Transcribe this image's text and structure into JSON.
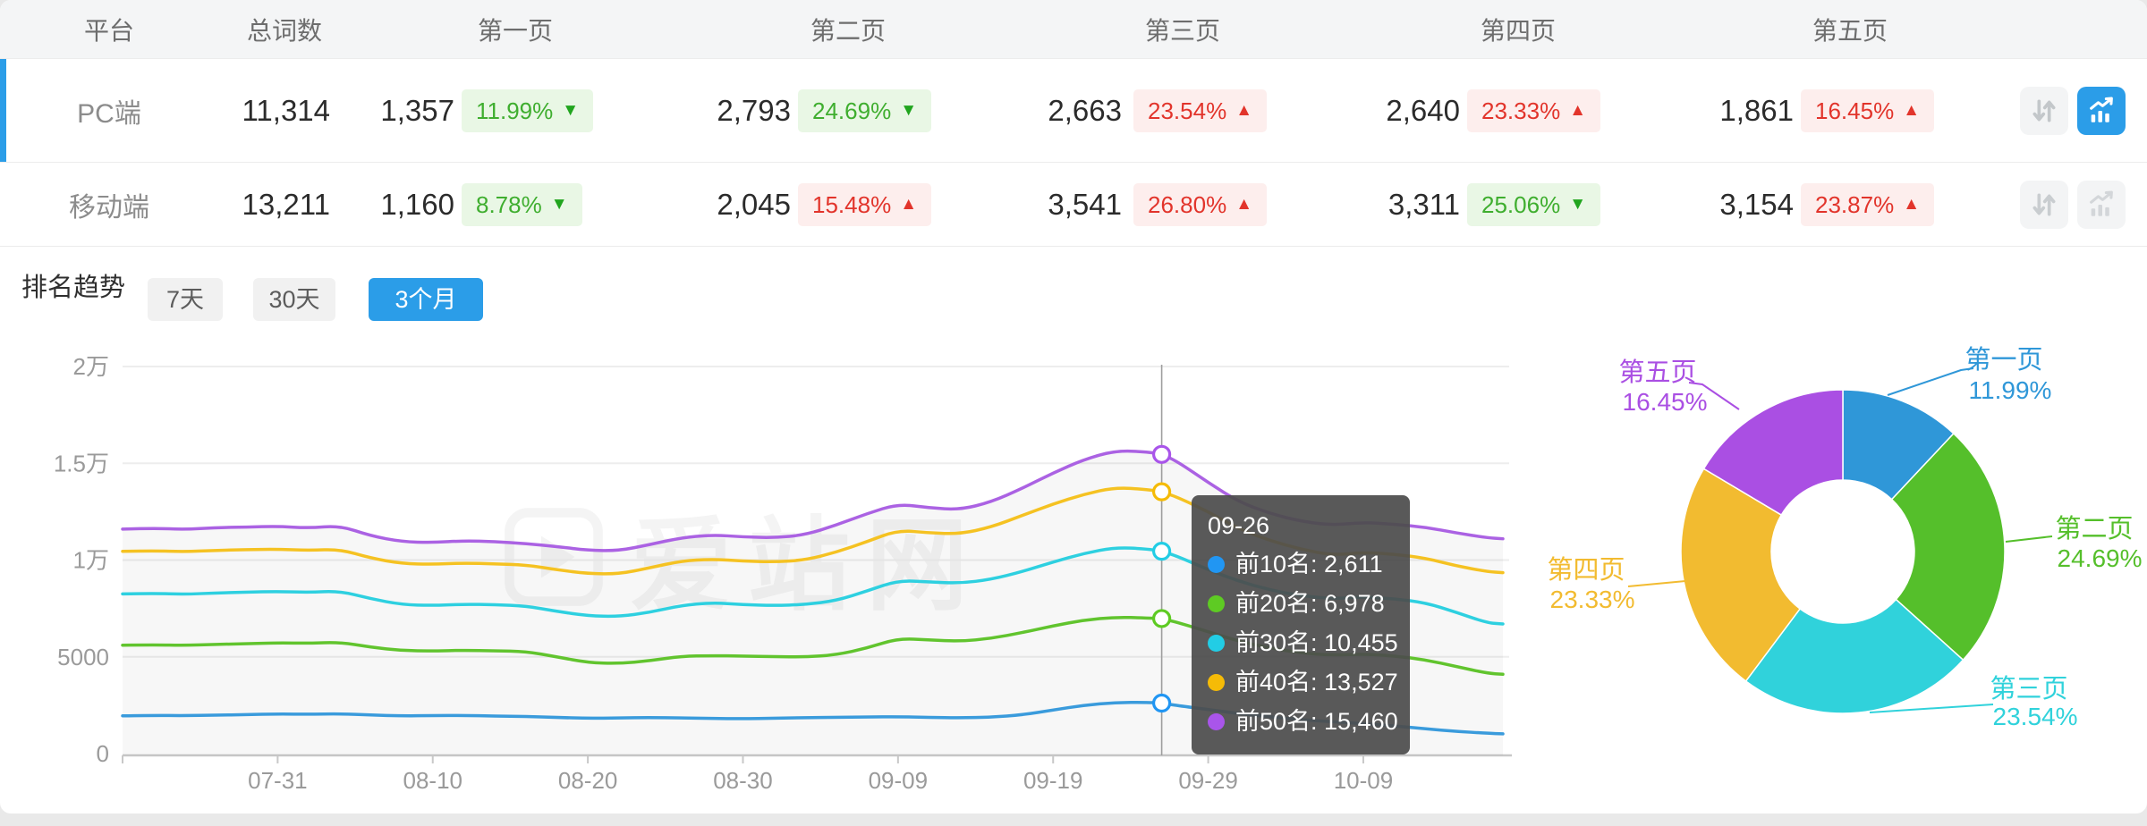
{
  "table": {
    "columns": [
      "平台",
      "总词数",
      "第一页",
      "第二页",
      "第三页",
      "第四页",
      "第五页"
    ],
    "rows": [
      {
        "platform": "PC端",
        "total": "11,314",
        "selected": true,
        "chart_button_active": true,
        "pages": [
          {
            "count": "1,357",
            "pct": "11.99%",
            "dir": "down",
            "tone": "good"
          },
          {
            "count": "2,793",
            "pct": "24.69%",
            "dir": "down",
            "tone": "good"
          },
          {
            "count": "2,663",
            "pct": "23.54%",
            "dir": "up",
            "tone": "bad"
          },
          {
            "count": "2,640",
            "pct": "23.33%",
            "dir": "up",
            "tone": "bad"
          },
          {
            "count": "1,861",
            "pct": "16.45%",
            "dir": "up",
            "tone": "bad"
          }
        ]
      },
      {
        "platform": "移动端",
        "total": "13,211",
        "selected": false,
        "chart_button_active": false,
        "pages": [
          {
            "count": "1,160",
            "pct": "8.78%",
            "dir": "down",
            "tone": "good"
          },
          {
            "count": "2,045",
            "pct": "15.48%",
            "dir": "up",
            "tone": "bad"
          },
          {
            "count": "3,541",
            "pct": "26.80%",
            "dir": "up",
            "tone": "bad"
          },
          {
            "count": "3,311",
            "pct": "25.06%",
            "dir": "down",
            "tone": "good"
          },
          {
            "count": "3,154",
            "pct": "23.87%",
            "dir": "up",
            "tone": "bad"
          }
        ]
      }
    ]
  },
  "trend": {
    "title": "排名趋势",
    "ranges": [
      "7天",
      "30天",
      "3个月"
    ],
    "active_range": "3个月"
  },
  "watermark": "爱站网",
  "tooltip": {
    "date": "09-26",
    "day": 67,
    "items": [
      {
        "label": "前10名",
        "value": 2611,
        "text": "前10名: 2,611",
        "color": "#2196f3"
      },
      {
        "label": "前20名",
        "value": 6978,
        "text": "前20名: 6,978",
        "color": "#5ecb23"
      },
      {
        "label": "前30名",
        "value": 10455,
        "text": "前30名: 10,455",
        "color": "#22cde5"
      },
      {
        "label": "前40名",
        "value": 13527,
        "text": "前40名: 13,527",
        "color": "#f5bb07"
      },
      {
        "label": "前50名",
        "value": 15460,
        "text": "前50名: 15,460",
        "color": "#a955ea"
      }
    ]
  },
  "chart_data": [
    {
      "type": "line",
      "title": "排名趋势 3个月",
      "ylim": [
        0,
        20000
      ],
      "grid": true,
      "crosshair_day": 67,
      "day_span": 89,
      "y_ticks": [
        {
          "label": "2万",
          "value": 20000
        },
        {
          "label": "1.5万",
          "value": 15000
        },
        {
          "label": "1万",
          "value": 10000
        },
        {
          "label": "5000",
          "value": 5000
        },
        {
          "label": "0",
          "value": 0
        }
      ],
      "x_ticks": [
        {
          "label": "07-31",
          "day": 10
        },
        {
          "label": "08-10",
          "day": 20
        },
        {
          "label": "08-20",
          "day": 30
        },
        {
          "label": "08-30",
          "day": 40
        },
        {
          "label": "09-09",
          "day": 50
        },
        {
          "label": "09-19",
          "day": 60
        },
        {
          "label": "09-29",
          "day": 70
        },
        {
          "label": "10-09",
          "day": 80
        }
      ],
      "days": [
        0,
        2,
        4,
        6,
        8,
        10,
        12,
        14,
        16,
        18,
        20,
        22,
        24,
        26,
        28,
        30,
        32,
        34,
        36,
        38,
        40,
        42,
        44,
        46,
        48,
        50,
        52,
        54,
        56,
        58,
        60,
        62,
        64,
        66,
        67,
        68,
        70,
        72,
        74,
        76,
        78,
        80,
        82,
        84,
        86,
        88,
        89
      ],
      "series": [
        {
          "name": "前10名",
          "color": "#3a9bdc",
          "values": [
            1950,
            1975,
            1960,
            1990,
            2010,
            2050,
            2030,
            2060,
            1990,
            1950,
            1960,
            1975,
            1940,
            1920,
            1870,
            1820,
            1845,
            1865,
            1840,
            1820,
            1800,
            1830,
            1855,
            1870,
            1890,
            1905,
            1870,
            1850,
            1880,
            2000,
            2250,
            2500,
            2640,
            2650,
            2611,
            2480,
            2280,
            2060,
            1900,
            1750,
            1650,
            1550,
            1430,
            1280,
            1150,
            1050,
            1020
          ]
        },
        {
          "name": "前20名",
          "color": "#61c42e",
          "values": [
            5600,
            5620,
            5590,
            5640,
            5680,
            5720,
            5700,
            5760,
            5500,
            5320,
            5300,
            5340,
            5310,
            5280,
            5000,
            4700,
            4650,
            4800,
            5030,
            5060,
            5040,
            5010,
            4990,
            5100,
            5450,
            5950,
            5870,
            5800,
            5950,
            6250,
            6600,
            6900,
            7050,
            7010,
            6978,
            6780,
            6300,
            5800,
            5450,
            5200,
            5080,
            5150,
            5050,
            4850,
            4500,
            4150,
            4100
          ]
        },
        {
          "name": "前30名",
          "color": "#2ed0e0",
          "values": [
            8250,
            8280,
            8230,
            8300,
            8340,
            8380,
            8330,
            8400,
            8000,
            7700,
            7650,
            7720,
            7690,
            7630,
            7350,
            7120,
            7080,
            7300,
            7650,
            7800,
            7700,
            7650,
            7700,
            7900,
            8400,
            8950,
            8870,
            8800,
            9000,
            9400,
            9900,
            10350,
            10650,
            10580,
            10455,
            10200,
            9500,
            8900,
            8450,
            8150,
            8000,
            8100,
            8000,
            7800,
            7300,
            6750,
            6700
          ]
        },
        {
          "name": "前40名",
          "color": "#f5c222",
          "values": [
            10450,
            10480,
            10430,
            10500,
            10540,
            10560,
            10500,
            10560,
            10100,
            9820,
            9780,
            9850,
            9800,
            9750,
            9500,
            9300,
            9280,
            9600,
            9950,
            10050,
            9950,
            9900,
            10000,
            10400,
            10950,
            11550,
            11400,
            11350,
            11700,
            12300,
            12900,
            13400,
            13750,
            13650,
            13527,
            13250,
            12500,
            11600,
            11000,
            10550,
            10250,
            10400,
            10300,
            10100,
            9700,
            9400,
            9350
          ]
        },
        {
          "name": "前50名",
          "color": "#ab62e3",
          "values": [
            11600,
            11650,
            11580,
            11680,
            11700,
            11750,
            11650,
            11780,
            11250,
            10950,
            10900,
            11000,
            10950,
            10850,
            10700,
            10500,
            10480,
            10800,
            11150,
            11300,
            11200,
            11150,
            11300,
            11800,
            12400,
            12900,
            12700,
            12600,
            13000,
            13700,
            14500,
            15200,
            15650,
            15600,
            15460,
            15100,
            14000,
            13000,
            12400,
            12000,
            11800,
            11950,
            11850,
            11700,
            11400,
            11150,
            11100
          ]
        }
      ]
    },
    {
      "type": "pie",
      "donut": true,
      "slices": [
        {
          "label": "第一页",
          "pct": 11.99,
          "pct_text": "11.99%",
          "color": "#2f97d8"
        },
        {
          "label": "第二页",
          "pct": 24.69,
          "pct_text": "24.69%",
          "color": "#55bf2b"
        },
        {
          "label": "第三页",
          "pct": 23.54,
          "pct_text": "23.54%",
          "color": "#30d2db"
        },
        {
          "label": "第四页",
          "pct": 23.33,
          "pct_text": "23.33%",
          "color": "#f2bb30"
        },
        {
          "label": "第五页",
          "pct": 16.45,
          "pct_text": "16.45%",
          "color": "#aa4fe3"
        }
      ]
    }
  ]
}
